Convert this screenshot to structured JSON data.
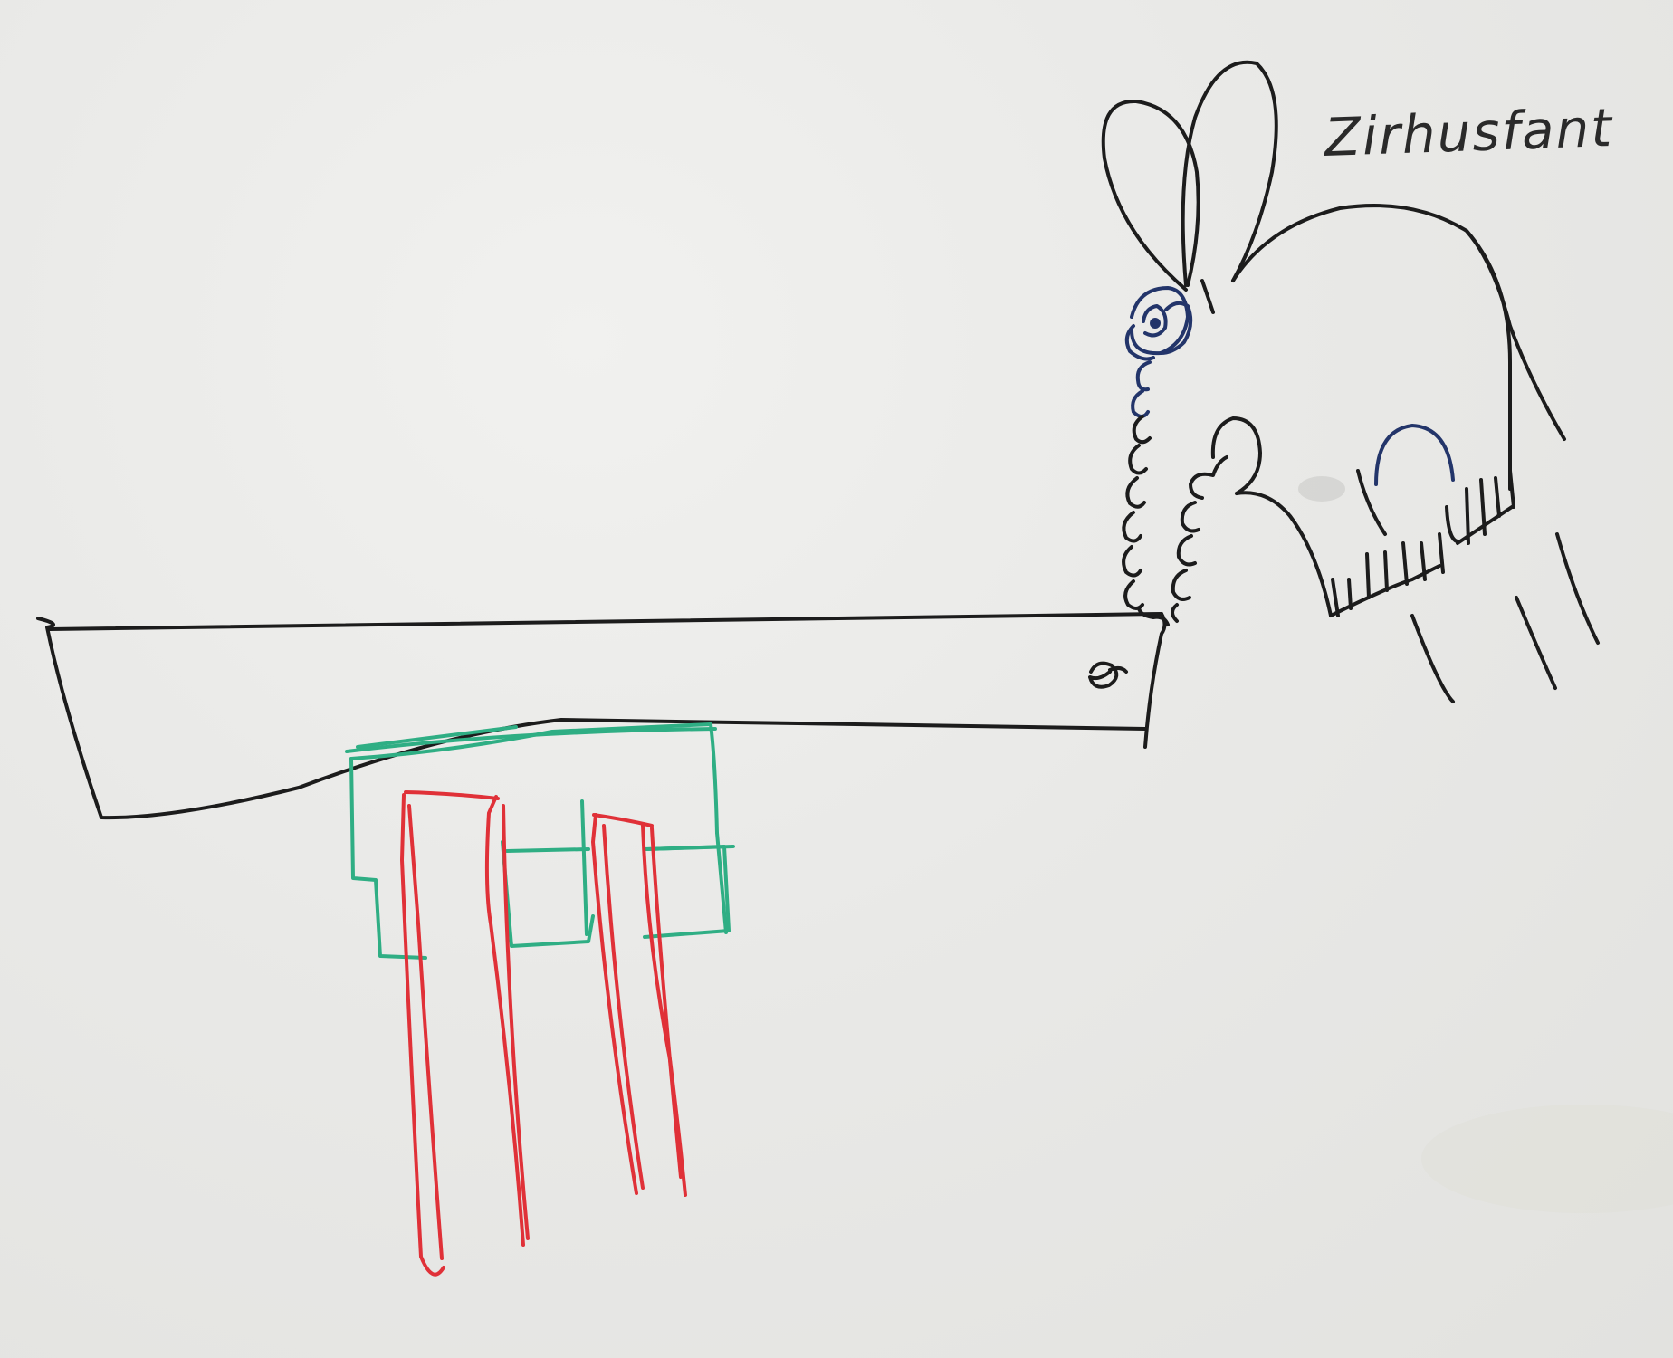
{
  "whiteboard": {
    "caption": "Zirhusfant"
  },
  "ink_colors": {
    "black": "#1c1c1c",
    "blue": "#23356a",
    "green": "#2fae84",
    "red": "#e03138"
  }
}
